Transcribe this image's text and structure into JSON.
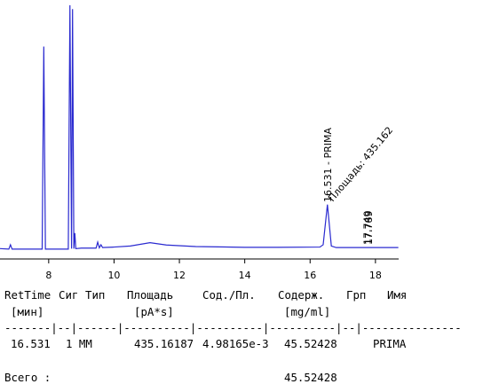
{
  "chart_data": {
    "type": "line",
    "x": [
      6.51,
      6.78,
      6.83,
      6.88,
      7.8,
      7.85,
      7.9,
      8.6,
      8.65,
      8.7,
      8.73,
      8.77,
      8.8,
      8.83,
      9.0,
      9.45,
      9.5,
      9.55,
      9.6,
      9.65,
      10.0,
      10.5,
      11.1,
      11.6,
      12.5,
      14.0,
      15.0,
      16.3,
      16.4,
      16.53,
      16.65,
      16.8,
      17.75,
      18.7
    ],
    "series": [
      {
        "color": "#2a2ad0",
        "values": [
          4,
          3.8,
          5.5,
          3.8,
          3.8,
          82,
          3.8,
          3.8,
          98,
          4,
          96.5,
          4,
          10,
          4,
          4.2,
          4.2,
          6.5,
          4.3,
          5.5,
          4.4,
          4.6,
          5,
          6.3,
          5.4,
          4.8,
          4.5,
          4.5,
          4.6,
          5.5,
          21,
          5,
          4.4,
          4.4,
          4.4
        ]
      }
    ],
    "xlim": [
      6.51,
      18.71
    ],
    "ylim": [
      0,
      100
    ],
    "xticks": [
      8,
      10,
      12,
      14,
      16,
      18
    ],
    "annotations": [
      {
        "x": 16.531,
        "text": "16.531 - PRIMA",
        "rotate": -90
      },
      {
        "x": 16.531,
        "text": "Площадь: 435.162",
        "rotate": -50
      },
      {
        "x": 17.749,
        "text": "17.749",
        "rotate": -90
      },
      {
        "x": 17.789,
        "text": "17.789",
        "rotate": -90
      }
    ]
  },
  "report": {
    "header": [
      "RetTime",
      "Сиг",
      "Тип",
      "Площадь",
      "Сод./Пл.",
      "Содерж.",
      "Грп",
      "Имя"
    ],
    "units": [
      "[мин]",
      "[pA*s]",
      "[mg/ml]"
    ],
    "separator": "-------|--|------|----------|----------|----------|--|---------------",
    "row": [
      "16.531",
      "1 MM",
      "435.16187",
      "4.98165e-3",
      "45.52428",
      "PRIMA"
    ],
    "total_label": "Всего :",
    "total": "45.52428"
  }
}
